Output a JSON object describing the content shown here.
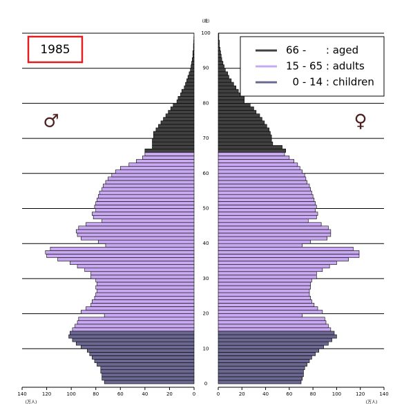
{
  "chart_data": {
    "type": "pyramid",
    "title": "1985",
    "male_label": "♂",
    "female_label": "♀",
    "age_unit": "(歳)",
    "x_unit": "(万人)",
    "ylim": [
      0,
      100
    ],
    "yticks": [
      0,
      10,
      20,
      30,
      40,
      50,
      60,
      70,
      80,
      90,
      100
    ],
    "xlim": [
      0,
      140
    ],
    "xticks": [
      0,
      20,
      40,
      60,
      80,
      100,
      120,
      140
    ],
    "grid": true,
    "series": [
      {
        "name": "66 -      : aged",
        "color": "#404040",
        "ages": [
          66,
          67,
          68,
          69,
          70,
          71,
          72,
          73,
          74,
          75,
          76,
          77,
          78,
          79,
          80,
          81,
          82,
          83,
          84,
          85,
          86,
          87,
          88,
          89,
          90,
          91,
          92,
          93,
          94,
          95,
          96,
          97,
          98,
          99
        ],
        "male": [
          40,
          34,
          34,
          34,
          33,
          33,
          31,
          29,
          27,
          25,
          23,
          21,
          19,
          17,
          14,
          13,
          11,
          10,
          8,
          7,
          6,
          5,
          4,
          3,
          2.5,
          2,
          1.5,
          1,
          1,
          0.5,
          0.5,
          0.3,
          0.2,
          0.1
        ],
        "female": [
          57,
          54,
          46,
          45,
          45,
          44,
          43,
          41,
          39,
          37,
          35,
          32,
          30,
          27,
          22,
          22,
          20,
          17,
          15,
          13,
          11,
          9,
          8,
          6,
          5,
          4,
          3,
          2.5,
          2,
          1.5,
          1,
          1,
          0.5,
          0.5
        ]
      },
      {
        "name": "15 - 65 : adults",
        "color": "#c8a8f0",
        "ages": [
          15,
          16,
          17,
          18,
          19,
          20,
          21,
          22,
          23,
          24,
          25,
          26,
          27,
          28,
          29,
          30,
          31,
          32,
          33,
          34,
          35,
          36,
          37,
          38,
          39,
          40,
          41,
          42,
          43,
          44,
          45,
          46,
          47,
          48,
          49,
          50,
          51,
          52,
          53,
          54,
          55,
          56,
          57,
          58,
          59,
          60,
          61,
          62,
          63,
          64,
          65
        ],
        "male": [
          99,
          97,
          95,
          94,
          73,
          92,
          88,
          84,
          83,
          81,
          80,
          79,
          80,
          79,
          80,
          84,
          84,
          89,
          95,
          101,
          111,
          120,
          121,
          117,
          72,
          78,
          92,
          95,
          96,
          94,
          88,
          75,
          82,
          83,
          80,
          81,
          80,
          79,
          78,
          77,
          75,
          74,
          72,
          70,
          67,
          64,
          60,
          53,
          47,
          42,
          40
        ],
        "female": [
          95,
          93,
          91,
          90,
          71,
          88,
          84,
          81,
          79,
          78,
          77,
          77,
          78,
          78,
          79,
          83,
          83,
          88,
          94,
          100,
          110,
          119,
          119,
          114,
          71,
          78,
          92,
          95,
          95,
          93,
          87,
          76,
          83,
          84,
          82,
          83,
          82,
          81,
          80,
          79,
          78,
          77,
          75,
          74,
          73,
          71,
          69,
          67,
          64,
          60,
          56
        ]
      },
      {
        "name": "  0 - 14 : children",
        "color": "#6a6890",
        "ages": [
          0,
          1,
          2,
          3,
          4,
          5,
          6,
          7,
          8,
          9,
          10,
          11,
          12,
          13,
          14
        ],
        "male": [
          73,
          75,
          75,
          76,
          76,
          79,
          81,
          83,
          85,
          87,
          92,
          96,
          99,
          102,
          101
        ],
        "female": [
          70,
          71,
          72,
          72,
          73,
          75,
          77,
          79,
          82,
          85,
          89,
          93,
          96,
          100,
          98
        ]
      }
    ]
  }
}
